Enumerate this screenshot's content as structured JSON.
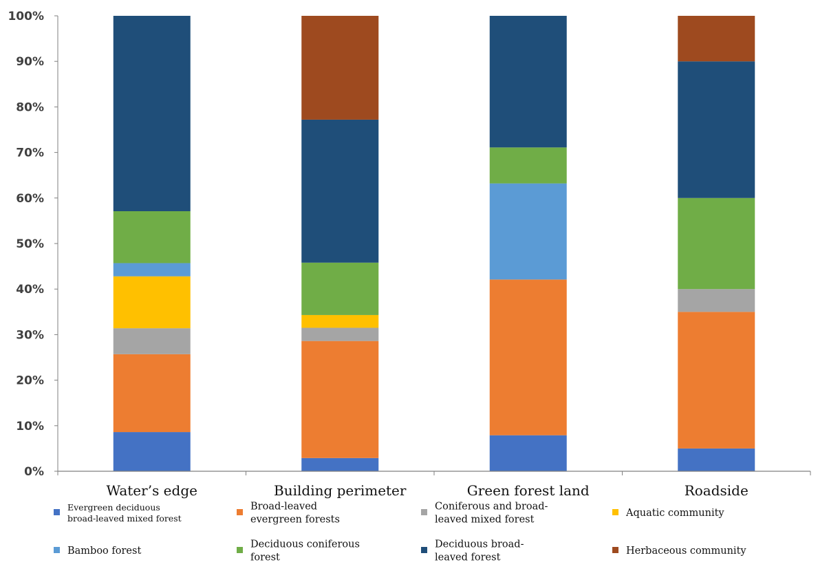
{
  "chart_data": {
    "type": "bar",
    "stacked": true,
    "categories": [
      "Water’s edge",
      "Building perimeter",
      "Green forest land",
      "Roadside"
    ],
    "ylim": [
      0,
      100
    ],
    "yticks": [
      "0%",
      "10%",
      "20%",
      "30%",
      "40%",
      "50%",
      "60%",
      "70%",
      "80%",
      "90%",
      "100%"
    ],
    "grid": false,
    "legend_position": "bottom",
    "series": [
      {
        "name": "Evergreen deciduous broad-leaved mixed forest",
        "color": "#4472C4",
        "values": [
          8.6,
          2.9,
          7.9,
          5.0
        ]
      },
      {
        "name": "Broad-leaved evergreen forests",
        "color": "#ED7D31",
        "values": [
          17.1,
          25.7,
          34.2,
          30.0
        ]
      },
      {
        "name": "Coniferous and broad-leaved mixed forest",
        "color": "#A5A5A5",
        "values": [
          5.7,
          2.9,
          0,
          5.0
        ]
      },
      {
        "name": "Aquatic community",
        "color": "#FFC000",
        "values": [
          11.4,
          2.8,
          0,
          0
        ]
      },
      {
        "name": "Bamboo forest",
        "color": "#5B9BD5",
        "values": [
          2.9,
          0,
          21.1,
          0
        ]
      },
      {
        "name": "Deciduous coniferous forest",
        "color": "#70AD47",
        "values": [
          11.4,
          11.5,
          7.9,
          20.0
        ]
      },
      {
        "name": "Deciduous broad-leaved forest",
        "color": "#1F4E79",
        "values": [
          42.9,
          31.4,
          28.9,
          30.0
        ]
      },
      {
        "name": "Herbaceous community",
        "color": "#9E4A1F",
        "values": [
          0,
          22.8,
          0,
          10.0
        ]
      }
    ]
  },
  "legend": [
    {
      "lines": [
        "Evergreen deciduous",
        "broad-leaved mixed forest"
      ],
      "color": "#4472C4",
      "small": true
    },
    {
      "lines": [
        "Broad-leaved",
        "evergreen forests"
      ],
      "color": "#ED7D31",
      "small": false
    },
    {
      "lines": [
        "Coniferous and broad-",
        "leaved mixed forest"
      ],
      "color": "#A5A5A5",
      "small": false
    },
    {
      "lines": [
        "Aquatic community"
      ],
      "color": "#FFC000",
      "small": false
    },
    {
      "lines": [
        "Bamboo forest"
      ],
      "color": "#5B9BD5",
      "small": false
    },
    {
      "lines": [
        "Deciduous coniferous",
        "forest"
      ],
      "color": "#70AD47",
      "small": false
    },
    {
      "lines": [
        "Deciduous broad-",
        "leaved forest"
      ],
      "color": "#1F4E79",
      "small": false
    },
    {
      "lines": [
        "Herbaceous community"
      ],
      "color": "#9E4A1F",
      "small": false
    }
  ]
}
